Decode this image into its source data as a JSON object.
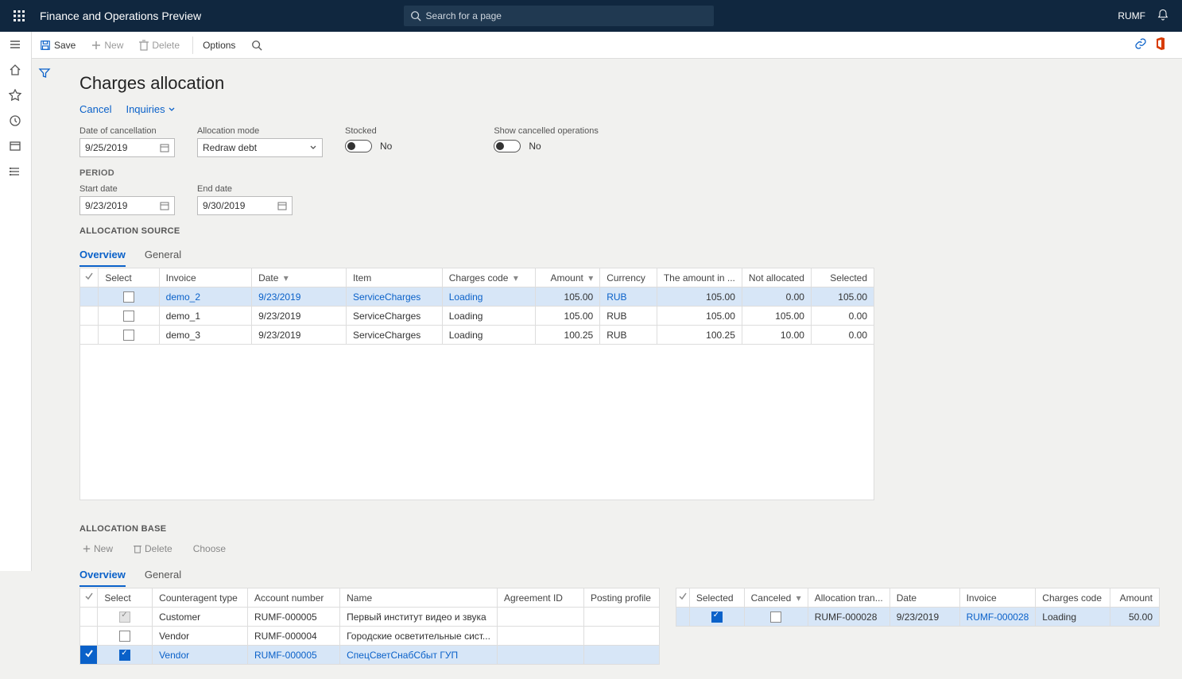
{
  "brand": "Finance and Operations Preview",
  "search_placeholder": "Search for a page",
  "user": "RUMF",
  "cmd": {
    "save": "Save",
    "new": "New",
    "delete": "Delete",
    "options": "Options"
  },
  "page_title": "Charges allocation",
  "links": {
    "cancel": "Cancel",
    "inquiries": "Inquiries"
  },
  "fields": {
    "date_of_cancellation": {
      "label": "Date of cancellation",
      "value": "9/25/2019"
    },
    "allocation_mode": {
      "label": "Allocation mode",
      "value": "Redraw debt"
    },
    "stocked": {
      "label": "Stocked",
      "value": "No"
    },
    "show_cancelled": {
      "label": "Show cancelled operations",
      "value": "No"
    }
  },
  "period": {
    "label": "PERIOD",
    "start": {
      "label": "Start date",
      "value": "9/23/2019"
    },
    "end": {
      "label": "End date",
      "value": "9/30/2019"
    }
  },
  "src": {
    "title": "ALLOCATION SOURCE",
    "tabs": {
      "overview": "Overview",
      "general": "General"
    },
    "cols": {
      "select": "Select",
      "invoice": "Invoice",
      "date": "Date",
      "item": "Item",
      "code": "Charges code",
      "amount": "Amount",
      "currency": "Currency",
      "amount_in": "The amount in ...",
      "not_alloc": "Not allocated",
      "selected": "Selected"
    },
    "rows": [
      {
        "sel": false,
        "invoice": "demo_2",
        "date": "9/23/2019",
        "item": "ServiceCharges",
        "code": "Loading",
        "amount": "105.00",
        "currency": "RUB",
        "amount_in": "105.00",
        "not_alloc": "0.00",
        "selected": "105.00",
        "active": true
      },
      {
        "sel": false,
        "invoice": "demo_1",
        "date": "9/23/2019",
        "item": "ServiceCharges",
        "code": "Loading",
        "amount": "105.00",
        "currency": "RUB",
        "amount_in": "105.00",
        "not_alloc": "105.00",
        "selected": "0.00",
        "active": false
      },
      {
        "sel": false,
        "invoice": "demo_3",
        "date": "9/23/2019",
        "item": "ServiceCharges",
        "code": "Loading",
        "amount": "100.25",
        "currency": "RUB",
        "amount_in": "100.25",
        "not_alloc": "10.00",
        "selected": "0.00",
        "active": false
      }
    ]
  },
  "base": {
    "title": "ALLOCATION BASE",
    "actions": {
      "new": "New",
      "delete": "Delete",
      "choose": "Choose"
    },
    "tabs": {
      "overview": "Overview",
      "general": "General"
    },
    "left_cols": {
      "select": "Select",
      "catype": "Counteragent type",
      "account": "Account number",
      "name": "Name",
      "agreement": "Agreement ID",
      "posting": "Posting profile"
    },
    "left_rows": [
      {
        "sel_disabled": true,
        "catype": "Customer",
        "account": "RUMF-000005",
        "name": "Первый институт видео и звука",
        "agreement": "",
        "posting": "",
        "active": false
      },
      {
        "sel": false,
        "catype": "Vendor",
        "account": "RUMF-000004",
        "name": "Городские осветительные сист...",
        "agreement": "",
        "posting": "",
        "active": false
      },
      {
        "sel": true,
        "catype": "Vendor",
        "account": "RUMF-000005",
        "name": "СпецСветСнабСбыт ГУП",
        "agreement": "",
        "posting": "",
        "active": true
      }
    ],
    "right_cols": {
      "selected": "Selected",
      "canceled": "Canceled",
      "tran": "Allocation tran...",
      "date": "Date",
      "invoice": "Invoice",
      "code": "Charges code",
      "amount": "Amount"
    },
    "right_rows": [
      {
        "sel": true,
        "cancel": false,
        "tran": "RUMF-000028",
        "date": "9/23/2019",
        "invoice": "RUMF-000028",
        "code": "Loading",
        "amount": "50.00",
        "active": true
      }
    ]
  }
}
